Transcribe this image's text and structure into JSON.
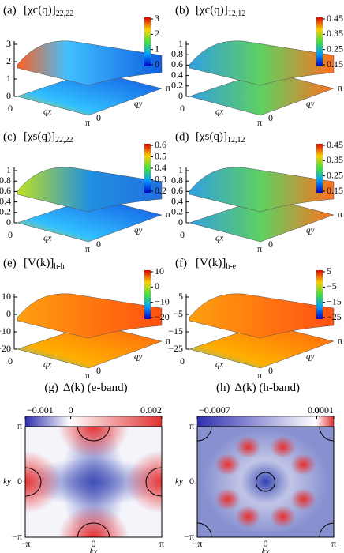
{
  "surface_panels": [
    {
      "label": "(a)",
      "title": "[χc(q)]",
      "subscript": "22,22",
      "zticks": [
        0,
        1,
        2,
        3
      ],
      "colorbar_ticks": [
        0,
        1,
        2,
        3
      ],
      "x_axis": [
        "0",
        "qx",
        "π"
      ],
      "y_axis": [
        "0",
        "qy",
        "π"
      ]
    },
    {
      "label": "(b)",
      "title": "[χc(q)]",
      "subscript": "12,12",
      "zticks": [
        0,
        0.2,
        0.4,
        0.6,
        0.8,
        1
      ],
      "colorbar_ticks": [
        0.15,
        0.25,
        0.35,
        0.45
      ],
      "x_axis": [
        "0",
        "qx",
        "π"
      ],
      "y_axis": [
        "0",
        "qy",
        "π"
      ]
    },
    {
      "label": "(c)",
      "title": "[χs(q)]",
      "subscript": "22,22",
      "zticks": [
        0,
        0.2,
        0.4,
        0.6,
        0.8,
        1
      ],
      "colorbar_ticks": [
        0.2,
        0.3,
        0.4,
        0.5,
        0.6
      ],
      "x_axis": [
        "0",
        "qx",
        "π"
      ],
      "y_axis": [
        "0",
        "qy",
        "π"
      ]
    },
    {
      "label": "(d)",
      "title": "[χs(q)]",
      "subscript": "12,12",
      "zticks": [
        0,
        0.2,
        0.4,
        0.6,
        0.8,
        1
      ],
      "colorbar_ticks": [
        0.15,
        0.25,
        0.35,
        0.45
      ],
      "x_axis": [
        "0",
        "qx",
        "π"
      ],
      "y_axis": [
        "0",
        "qy",
        "π"
      ]
    },
    {
      "label": "(e)",
      "title": "[V(k)]",
      "subscript": "h-h",
      "zticks": [
        {
          "value": -20,
          "label": "−20"
        },
        {
          "value": -10,
          "label": "−10"
        },
        0,
        10
      ],
      "colorbar_ticks": [
        {
          "value": -20,
          "label": "−20"
        },
        {
          "value": -10,
          "label": "−10"
        },
        0,
        10
      ],
      "x_axis": [
        "0",
        "qx",
        "π"
      ],
      "y_axis": [
        "0",
        "qy",
        "π"
      ]
    },
    {
      "label": "(f)",
      "title": "[V(k)]",
      "subscript": "h-e",
      "zticks": [
        {
          "value": -25,
          "label": "−25"
        },
        {
          "value": -15,
          "label": "−15"
        },
        {
          "value": -5,
          "label": "−5"
        },
        5
      ],
      "colorbar_ticks": [
        {
          "value": -25,
          "label": "−25"
        },
        {
          "value": -15,
          "label": "−15"
        },
        {
          "value": -5,
          "label": "−5"
        },
        5
      ],
      "x_axis": [
        "0",
        "qx",
        "π"
      ],
      "y_axis": [
        "0",
        "qy",
        "π"
      ]
    }
  ],
  "map_panels": [
    {
      "label": "(g)",
      "title": "Δ(k) (e-band)",
      "colorbar_ticks": [
        {
          "value": -0.001,
          "label": "−0.001"
        },
        0,
        0.002
      ],
      "x_ticks": [
        "−π",
        "0",
        "π"
      ],
      "y_ticks": [
        "−π",
        "0",
        "π"
      ],
      "x_label": "kx",
      "y_label": "ky"
    },
    {
      "label": "(h)",
      "title": "Δ(k) (h-band)",
      "colorbar_ticks": [
        {
          "value": -0.0007,
          "label": "−0.0007"
        },
        0,
        0.0001
      ],
      "x_ticks": [
        "−π",
        "0",
        "π"
      ],
      "y_ticks": [
        "−π",
        "0",
        "π"
      ],
      "x_label": "kx",
      "y_label": "ky"
    }
  ]
}
